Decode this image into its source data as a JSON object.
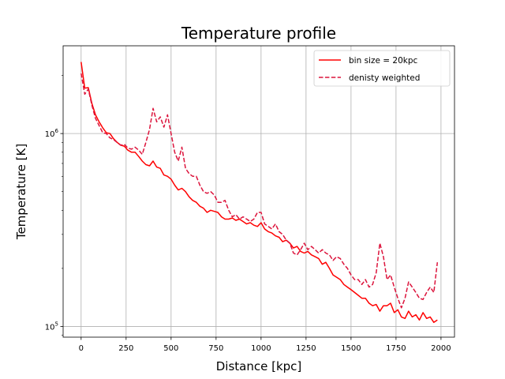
{
  "chart_data": {
    "type": "line",
    "title": "Temperature profile",
    "xlabel": "Distance [kpc]",
    "ylabel": "Temperature [K]",
    "xlim": [
      -100,
      2075
    ],
    "ylim": [
      88000,
      2850000
    ],
    "yscale": "log",
    "grid": true,
    "legend_position": "top-right",
    "x_ticks": [
      0,
      250,
      500,
      750,
      1000,
      1250,
      1500,
      1750,
      2000
    ],
    "x_tick_labels": [
      "0",
      "250",
      "500",
      "750",
      "1000",
      "1250",
      "1500",
      "1750",
      "2000"
    ],
    "y_ticks": [
      100000,
      1000000
    ],
    "y_tick_base": "10",
    "y_tick_exponents": [
      "5",
      "6"
    ],
    "series": [
      {
        "name": "bin size = 20kpc",
        "color": "#ff0000",
        "style": "solid",
        "x": [
          0,
          20,
          40,
          60,
          80,
          100,
          120,
          140,
          160,
          180,
          200,
          220,
          240,
          260,
          280,
          300,
          320,
          340,
          360,
          380,
          400,
          420,
          440,
          460,
          480,
          500,
          520,
          540,
          560,
          580,
          600,
          620,
          640,
          660,
          680,
          700,
          720,
          740,
          760,
          780,
          800,
          820,
          840,
          860,
          880,
          900,
          920,
          940,
          960,
          980,
          1000,
          1020,
          1040,
          1060,
          1080,
          1100,
          1120,
          1140,
          1160,
          1180,
          1200,
          1220,
          1240,
          1260,
          1280,
          1300,
          1320,
          1340,
          1360,
          1380,
          1400,
          1420,
          1440,
          1460,
          1480,
          1500,
          1520,
          1540,
          1560,
          1580,
          1600,
          1620,
          1640,
          1660,
          1680,
          1700,
          1720,
          1740,
          1760,
          1780,
          1800,
          1820,
          1840,
          1860,
          1880,
          1900,
          1920,
          1940,
          1960,
          1980
        ],
        "values": [
          2350000,
          1720000,
          1730000,
          1430000,
          1250000,
          1150000,
          1070000,
          1010000,
          1000000,
          940000,
          900000,
          870000,
          860000,
          820000,
          800000,
          800000,
          760000,
          720000,
          690000,
          680000,
          720000,
          670000,
          660000,
          610000,
          600000,
          580000,
          540000,
          510000,
          520000,
          500000,
          470000,
          450000,
          440000,
          420000,
          410000,
          390000,
          400000,
          395000,
          390000,
          370000,
          360000,
          360000,
          365000,
          355000,
          360000,
          350000,
          340000,
          345000,
          335000,
          330000,
          345000,
          320000,
          310000,
          305000,
          295000,
          290000,
          275000,
          280000,
          270000,
          255000,
          260000,
          245000,
          240000,
          245000,
          235000,
          230000,
          225000,
          210000,
          215000,
          200000,
          185000,
          180000,
          175000,
          165000,
          160000,
          155000,
          150000,
          145000,
          140000,
          140000,
          132000,
          128000,
          130000,
          120000,
          128000,
          128000,
          132000,
          118000,
          122000,
          112000,
          110000,
          120000,
          112000,
          115000,
          108000,
          118000,
          110000,
          112000,
          105000,
          108000
        ]
      },
      {
        "name": "denisty weighted",
        "color": "#dc143c",
        "style": "dashed",
        "x": [
          0,
          20,
          40,
          60,
          80,
          100,
          120,
          140,
          160,
          180,
          200,
          220,
          240,
          260,
          280,
          300,
          320,
          340,
          360,
          380,
          400,
          420,
          440,
          460,
          480,
          500,
          520,
          540,
          560,
          580,
          600,
          620,
          640,
          660,
          680,
          700,
          720,
          740,
          760,
          780,
          800,
          820,
          840,
          860,
          880,
          900,
          920,
          940,
          960,
          980,
          1000,
          1020,
          1040,
          1060,
          1080,
          1100,
          1120,
          1140,
          1160,
          1180,
          1200,
          1220,
          1240,
          1260,
          1280,
          1300,
          1320,
          1340,
          1360,
          1380,
          1400,
          1420,
          1440,
          1460,
          1480,
          1500,
          1520,
          1540,
          1560,
          1580,
          1600,
          1620,
          1640,
          1660,
          1680,
          1700,
          1720,
          1740,
          1760,
          1780,
          1800,
          1820,
          1840,
          1860,
          1880,
          1900,
          1920,
          1940,
          1960,
          1980
        ],
        "values": [
          2050000,
          1600000,
          1700000,
          1400000,
          1200000,
          1100000,
          1010000,
          1000000,
          950000,
          930000,
          900000,
          870000,
          880000,
          840000,
          830000,
          850000,
          820000,
          780000,
          900000,
          1050000,
          1350000,
          1150000,
          1220000,
          1080000,
          1250000,
          1000000,
          800000,
          720000,
          850000,
          660000,
          620000,
          600000,
          600000,
          540000,
          500000,
          490000,
          500000,
          480000,
          440000,
          440000,
          450000,
          400000,
          370000,
          380000,
          360000,
          370000,
          360000,
          350000,
          360000,
          390000,
          390000,
          340000,
          330000,
          320000,
          340000,
          310000,
          300000,
          280000,
          270000,
          240000,
          235000,
          250000,
          270000,
          250000,
          260000,
          250000,
          240000,
          250000,
          240000,
          235000,
          220000,
          230000,
          225000,
          210000,
          200000,
          185000,
          175000,
          175000,
          165000,
          175000,
          160000,
          165000,
          190000,
          270000,
          230000,
          175000,
          185000,
          160000,
          140000,
          125000,
          140000,
          170000,
          160000,
          150000,
          140000,
          138000,
          150000,
          160000,
          150000,
          215000
        ]
      }
    ]
  }
}
